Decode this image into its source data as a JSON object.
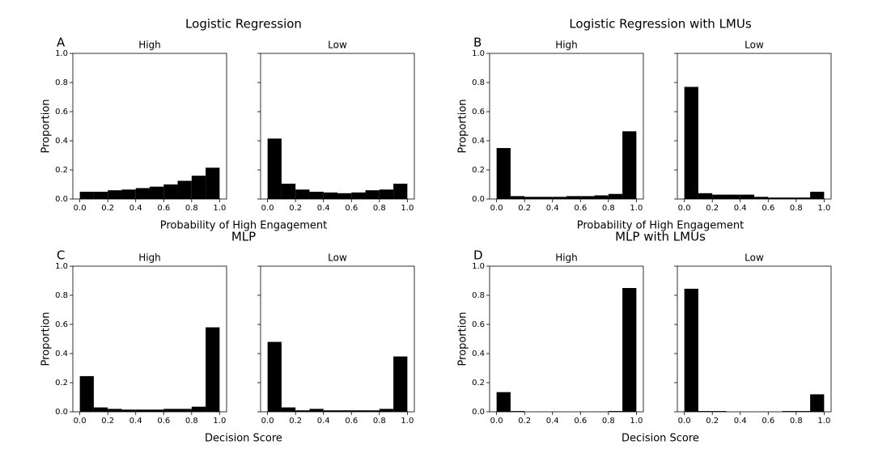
{
  "chart_data": [
    {
      "type": "histogram",
      "title": "Logistic Regression",
      "letter": "A",
      "xlabel": "Probability of High Engagement",
      "ylabel": "Proportion",
      "color": "#000000",
      "bins": [
        0,
        0.1,
        0.2,
        0.3,
        0.4,
        0.5,
        0.6,
        0.7,
        0.8,
        0.9,
        1.0
      ],
      "xlim": [
        -0.05,
        1.05
      ],
      "xticks": [
        {
          "value": 0,
          "label": "0.0"
        },
        0.2,
        0.4,
        0.6,
        0.8,
        {
          "value": 1,
          "label": "1.0"
        }
      ],
      "ylim": [
        0,
        1
      ],
      "yticks": [
        {
          "value": 0,
          "label": "0.0"
        },
        0.2,
        0.4,
        0.6,
        0.8,
        {
          "value": 1,
          "label": "1.0"
        }
      ],
      "series": [
        {
          "name": "High",
          "values": [
            0.05,
            0.05,
            0.06,
            0.065,
            0.075,
            0.085,
            0.1,
            0.125,
            0.16,
            0.215
          ]
        },
        {
          "name": "Low",
          "values": [
            0.415,
            0.105,
            0.065,
            0.05,
            0.045,
            0.04,
            0.045,
            0.06,
            0.065,
            0.105
          ]
        }
      ]
    },
    {
      "type": "histogram",
      "title": "Logistic Regression with LMUs",
      "letter": "B",
      "xlabel": "Probability of High Engagement",
      "ylabel": "Proportion",
      "color": "#000000",
      "bins": [
        0,
        0.1,
        0.2,
        0.3,
        0.4,
        0.5,
        0.6,
        0.7,
        0.8,
        0.9,
        1.0
      ],
      "xlim": [
        -0.05,
        1.05
      ],
      "xticks": [
        {
          "value": 0,
          "label": "0.0"
        },
        0.2,
        0.4,
        0.6,
        0.8,
        {
          "value": 1,
          "label": "1.0"
        }
      ],
      "ylim": [
        0,
        1
      ],
      "yticks": [
        {
          "value": 0,
          "label": "0.0"
        },
        0.2,
        0.4,
        0.6,
        0.8,
        {
          "value": 1,
          "label": "1.0"
        }
      ],
      "series": [
        {
          "name": "High",
          "values": [
            0.35,
            0.02,
            0.015,
            0.015,
            0.015,
            0.02,
            0.02,
            0.025,
            0.035,
            0.465
          ]
        },
        {
          "name": "Low",
          "values": [
            0.77,
            0.04,
            0.03,
            0.03,
            0.03,
            0.015,
            0.01,
            0.01,
            0.01,
            0.05
          ]
        }
      ]
    },
    {
      "type": "histogram",
      "title": "MLP",
      "letter": "C",
      "xlabel": "Decision Score",
      "ylabel": "Proportion",
      "color": "#000000",
      "bins": [
        0,
        0.1,
        0.2,
        0.3,
        0.4,
        0.5,
        0.6,
        0.7,
        0.8,
        0.9,
        1.0
      ],
      "xlim": [
        -0.05,
        1.05
      ],
      "xticks": [
        {
          "value": 0,
          "label": "0.0"
        },
        0.2,
        0.4,
        0.6,
        0.8,
        {
          "value": 1,
          "label": "1.0"
        }
      ],
      "ylim": [
        0,
        1
      ],
      "yticks": [
        {
          "value": 0,
          "label": "0.0"
        },
        0.2,
        0.4,
        0.6,
        0.8,
        {
          "value": 1,
          "label": "1.0"
        }
      ],
      "series": [
        {
          "name": "High",
          "values": [
            0.245,
            0.03,
            0.02,
            0.015,
            0.015,
            0.015,
            0.02,
            0.02,
            0.035,
            0.58
          ]
        },
        {
          "name": "Low",
          "values": [
            0.48,
            0.03,
            0.01,
            0.02,
            0.01,
            0.01,
            0.01,
            0.01,
            0.02,
            0.38
          ]
        }
      ]
    },
    {
      "type": "histogram",
      "title": "MLP with LMUs",
      "letter": "D",
      "xlabel": "Decision Score",
      "ylabel": "Proportion",
      "color": "#000000",
      "bins": [
        0,
        0.1,
        0.2,
        0.3,
        0.4,
        0.5,
        0.6,
        0.7,
        0.8,
        0.9,
        1.0
      ],
      "xlim": [
        -0.05,
        1.05
      ],
      "xticks": [
        {
          "value": 0,
          "label": "0.0"
        },
        0.2,
        0.4,
        0.6,
        0.8,
        {
          "value": 1,
          "label": "1.0"
        }
      ],
      "ylim": [
        0,
        1
      ],
      "yticks": [
        {
          "value": 0,
          "label": "0.0"
        },
        0.2,
        0.4,
        0.6,
        0.8,
        {
          "value": 1,
          "label": "1.0"
        }
      ],
      "series": [
        {
          "name": "High",
          "values": [
            0.135,
            0.005,
            0,
            0,
            0,
            0,
            0,
            0,
            0.005,
            0.85
          ]
        },
        {
          "name": "Low",
          "values": [
            0.845,
            0.005,
            0.005,
            0,
            0,
            0,
            0,
            0.005,
            0.005,
            0.12
          ]
        }
      ]
    }
  ]
}
